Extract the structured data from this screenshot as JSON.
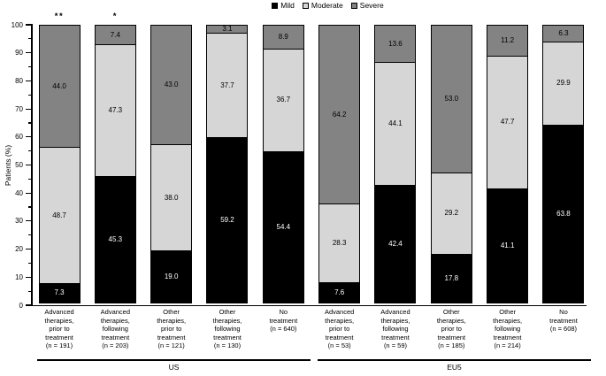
{
  "chart_data": {
    "type": "bar",
    "stacked": true,
    "title": "",
    "xlabel": "",
    "ylabel": "Patients (%)",
    "ylim": [
      0,
      100
    ],
    "ytick_major_step": 10,
    "ytick_minor_step": 5,
    "grid": false,
    "legend_position": "top-center",
    "legend_order": [
      "Mild",
      "Moderate",
      "Severe"
    ],
    "series": [
      {
        "name": "Mild",
        "color": "#000000",
        "label_color": "#ffffff",
        "values": [
          7.3,
          45.3,
          19.0,
          59.2,
          54.4,
          7.6,
          42.4,
          17.8,
          41.1,
          63.8
        ]
      },
      {
        "name": "Moderate",
        "color": "#d6d6d6",
        "label_color": "#000000",
        "values": [
          48.7,
          47.3,
          38.0,
          37.7,
          36.7,
          28.3,
          44.1,
          29.2,
          47.7,
          29.9
        ]
      },
      {
        "name": "Severe",
        "color": "#838383",
        "label_color": "#000000",
        "values": [
          44.0,
          7.4,
          43.0,
          3.1,
          8.9,
          64.2,
          13.6,
          53.0,
          11.2,
          6.3
        ]
      }
    ],
    "categories": [
      {
        "label": "Advanced\ntherapies,\nprior to\ntreatment\n(n = 191)",
        "annotation": "**",
        "group": "US"
      },
      {
        "label": "Advanced\ntherapies,\nfollowing\ntreatment\n(n = 203)",
        "annotation": "*",
        "group": "US"
      },
      {
        "label": "Other\ntherapies,\nprior to\ntreatment\n(n = 121)",
        "annotation": "",
        "group": "US"
      },
      {
        "label": "Other\ntherapies,\nfollowing\ntreatment\n(n = 130)",
        "annotation": "",
        "group": "US"
      },
      {
        "label": "No\ntreatment\n(n = 640)",
        "annotation": "",
        "group": "US"
      },
      {
        "label": "Advanced\ntherapies,\nprior to\ntreatment\n(n = 53)",
        "annotation": "",
        "group": "EU5"
      },
      {
        "label": "Advanced\ntherapies,\nfollowing\ntreatment\n(n = 59)",
        "annotation": "",
        "group": "EU5"
      },
      {
        "label": "Other\ntherapies,\nprior to\ntreatment\n(n = 185)",
        "annotation": "",
        "group": "EU5"
      },
      {
        "label": "Other\ntherapies,\nfollowing\ntreatment\n(n = 214)",
        "annotation": "",
        "group": "EU5"
      },
      {
        "label": "No\ntreatment\n(n = 608)",
        "annotation": "",
        "group": "EU5"
      }
    ],
    "groups": [
      {
        "label": "US",
        "from": 0,
        "to": 4
      },
      {
        "label": "EU5",
        "from": 5,
        "to": 9
      }
    ]
  }
}
